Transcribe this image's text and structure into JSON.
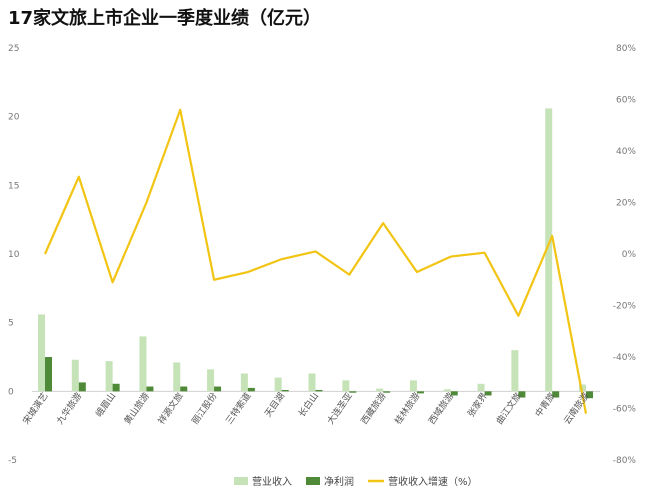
{
  "chart_data": {
    "type": "bar",
    "title": "17家文旅上市企业一季度业绩（亿元）",
    "categories": [
      "宋城演艺",
      "九华旅游",
      "峨眉山",
      "黄山旅游",
      "祥源文旅",
      "丽江股份",
      "三特索道",
      "天目湖",
      "长白山",
      "大连圣亚",
      "西藏旅游",
      "桂林旅游",
      "西域旅游",
      "张家界",
      "曲江文旅",
      "中青旅",
      "云南旅游"
    ],
    "series": [
      {
        "name": "营业收入",
        "axis": "left",
        "type": "bar",
        "color": "#c6e3b8",
        "values": [
          5.6,
          2.3,
          2.2,
          4.0,
          2.1,
          1.6,
          1.3,
          1.0,
          1.3,
          0.8,
          0.2,
          0.8,
          0.15,
          0.55,
          3.0,
          20.6,
          0.5
        ]
      },
      {
        "name": "净利润",
        "axis": "left",
        "type": "bar",
        "color": "#4f8a38",
        "values": [
          2.5,
          0.65,
          0.55,
          0.35,
          0.35,
          0.35,
          0.25,
          0.1,
          0.1,
          -0.1,
          -0.1,
          -0.15,
          -0.3,
          -0.3,
          -0.45,
          -0.45,
          -0.5
        ]
      },
      {
        "name": "营收收入增速（%）",
        "axis": "right",
        "type": "line",
        "color": "#f2c413",
        "values": [
          0,
          30,
          -11,
          20,
          56,
          -10,
          -7,
          -2,
          1,
          -8,
          12,
          -7,
          -1,
          0.5,
          -24,
          7,
          -62
        ]
      }
    ],
    "yleft": {
      "min": -5,
      "max": 25,
      "ticks": [
        "-5",
        "0",
        "5",
        "10",
        "15",
        "20",
        "25"
      ]
    },
    "yright": {
      "min": -80,
      "max": 80,
      "ticks": [
        "-80%",
        "-60%",
        "-40%",
        "-20%",
        "0%",
        "20%",
        "40%",
        "60%",
        "80%"
      ]
    },
    "grid": false,
    "legend": "bottom"
  }
}
